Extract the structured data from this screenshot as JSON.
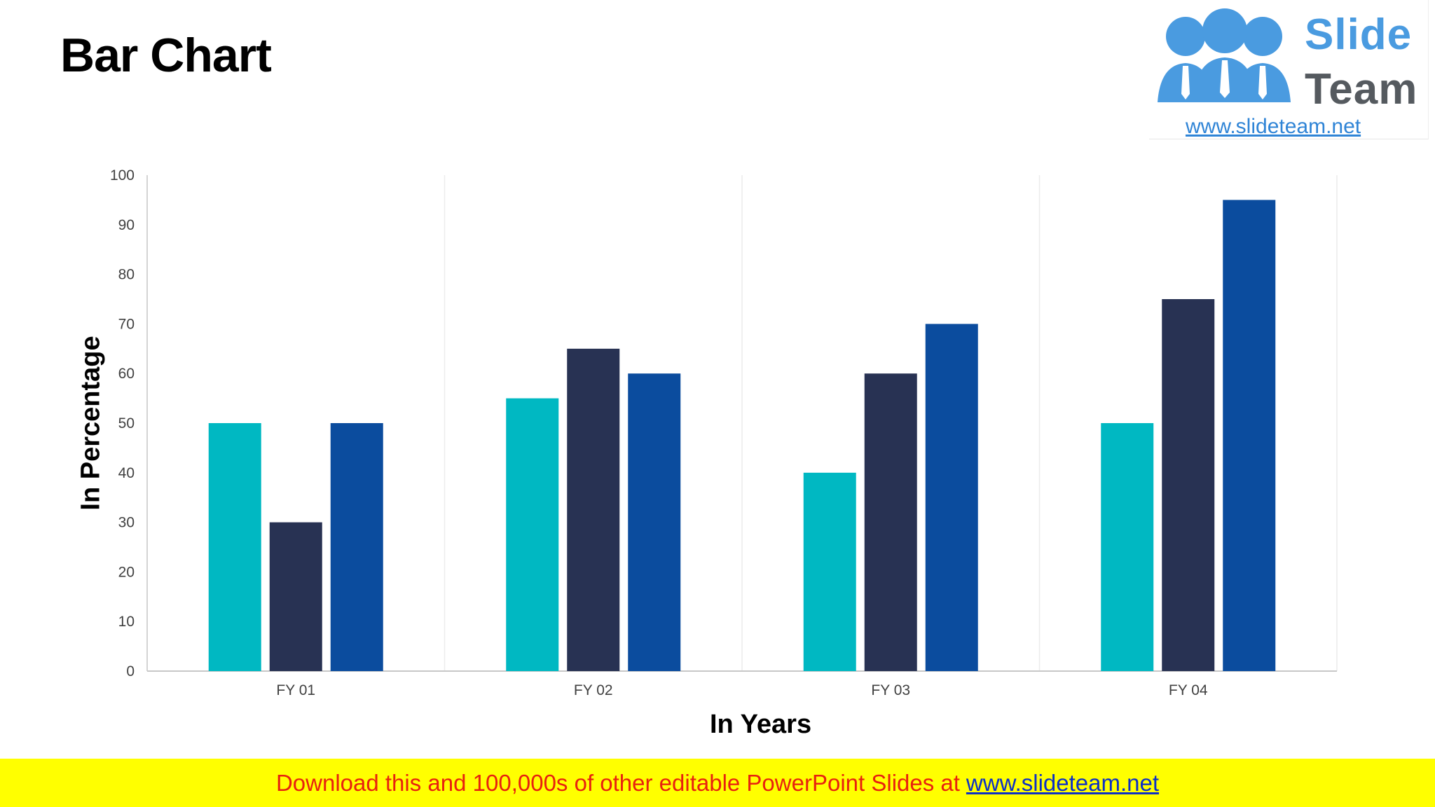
{
  "slide": {
    "title": "Bar Chart"
  },
  "logo": {
    "word1": "Slide",
    "word2": "Team",
    "url": "www.slideteam.net"
  },
  "footer": {
    "text": "Download this and 100,000s of other editable PowerPoint Slides at",
    "link": "www.slideteam.net"
  },
  "colors": {
    "series": [
      "#00b8c2",
      "#283253",
      "#0b4c9e"
    ],
    "footer_bg": "#ffff00",
    "footer_text": "#e8210f",
    "footer_link": "#0c2fc7"
  },
  "chart_data": {
    "type": "bar",
    "title": "",
    "xlabel": "In Years",
    "ylabel": "In Percentage",
    "categories": [
      "FY 01",
      "FY 02",
      "FY 03",
      "FY 04"
    ],
    "series": [
      {
        "values": [
          50,
          55,
          40,
          50
        ]
      },
      {
        "values": [
          30,
          65,
          60,
          75
        ]
      },
      {
        "values": [
          50,
          60,
          70,
          95
        ]
      }
    ],
    "ylim": [
      0,
      100
    ],
    "yticks": [
      0,
      10,
      20,
      30,
      40,
      50,
      60,
      70,
      80,
      90,
      100
    ],
    "grid": "vertical category separators",
    "legend": "none"
  }
}
